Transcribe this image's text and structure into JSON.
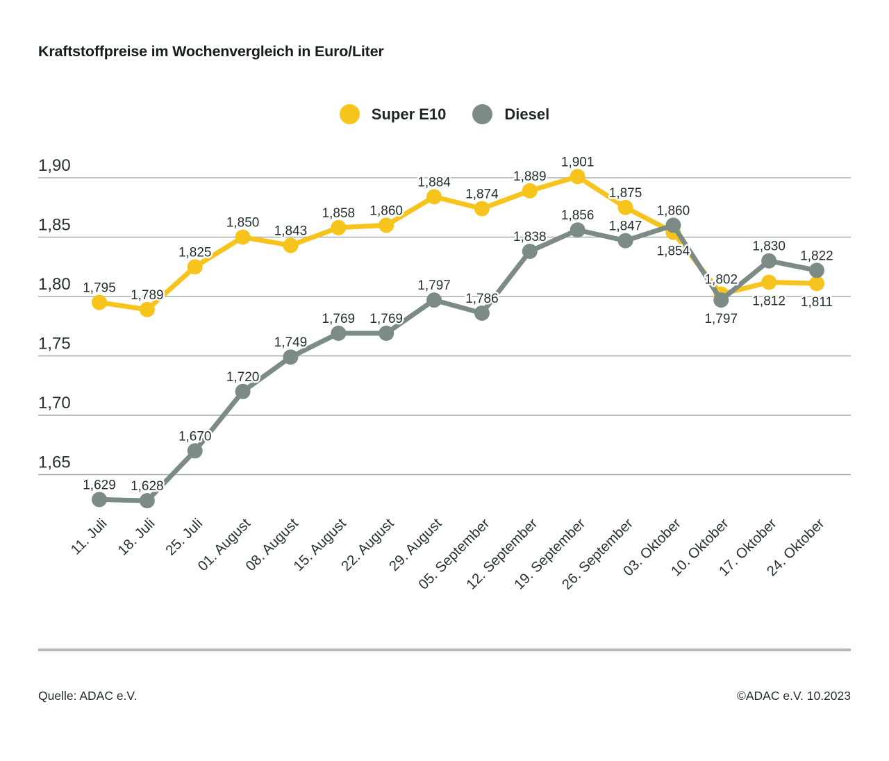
{
  "title": "Kraftstoffpreise im Wochenvergleich in Euro/Liter",
  "footer": {
    "source": "Quelle: ADAC e.V.",
    "copyright": "©ADAC e.V. 10.2023"
  },
  "colors": {
    "super_e10": "#f7c41e",
    "diesel": "#7c8b86",
    "gridline": "#a6aeab",
    "divider": "#b2b9b6",
    "text_dark": "#1c2626"
  },
  "chart_data": {
    "type": "line",
    "title": "Kraftstoffpreise im Wochenvergleich in Euro/Liter",
    "xlabel": "",
    "ylabel": "Euro/Liter",
    "ylim": [
      1.62,
      1.92
    ],
    "grid": "horizontal",
    "legend_position": "top-center",
    "categories": [
      "11. Juli",
      "18. Juli",
      "25. Juli",
      "01. August",
      "08. August",
      "15. August",
      "22. August",
      "29. August",
      "05. September",
      "12. September",
      "19. September",
      "26. September",
      "03. Oktober",
      "10. Oktober",
      "17. Oktober",
      "24. Oktober"
    ],
    "y_ticks": [
      {
        "label": "1,90",
        "value": 1.9
      },
      {
        "label": "1,85",
        "value": 1.85
      },
      {
        "label": "1,80",
        "value": 1.8
      },
      {
        "label": "1,75",
        "value": 1.75
      },
      {
        "label": "1,70",
        "value": 1.7
      },
      {
        "label": "1,65",
        "value": 1.65
      }
    ],
    "series": [
      {
        "name": "Super E10",
        "color": "#f7c41e",
        "values": [
          1.795,
          1.789,
          1.825,
          1.85,
          1.843,
          1.858,
          1.86,
          1.884,
          1.874,
          1.889,
          1.901,
          1.875,
          1.854,
          1.802,
          1.812,
          1.811
        ],
        "labels": [
          "1,795",
          "1,789",
          "1,825",
          "1,850",
          "1,843",
          "1,858",
          "1,860",
          "1,884",
          "1,874",
          "1,889",
          "1,901",
          "1,875",
          "1,854",
          "1,802",
          "1,812",
          "1,811"
        ],
        "labels_below": [
          12,
          14,
          15
        ]
      },
      {
        "name": "Diesel",
        "color": "#7c8b86",
        "values": [
          1.629,
          1.628,
          1.67,
          1.72,
          1.749,
          1.769,
          1.769,
          1.797,
          1.786,
          1.838,
          1.856,
          1.847,
          1.86,
          1.797,
          1.83,
          1.822
        ],
        "labels": [
          "1,629",
          "1,628",
          "1,670",
          "1,720",
          "1,749",
          "1,769",
          "1,769",
          "1,797",
          "1,786",
          "1,838",
          "1,856",
          "1,847",
          "1,860",
          "1,797",
          "1,830",
          "1,822"
        ],
        "labels_below": [
          13
        ]
      }
    ]
  }
}
